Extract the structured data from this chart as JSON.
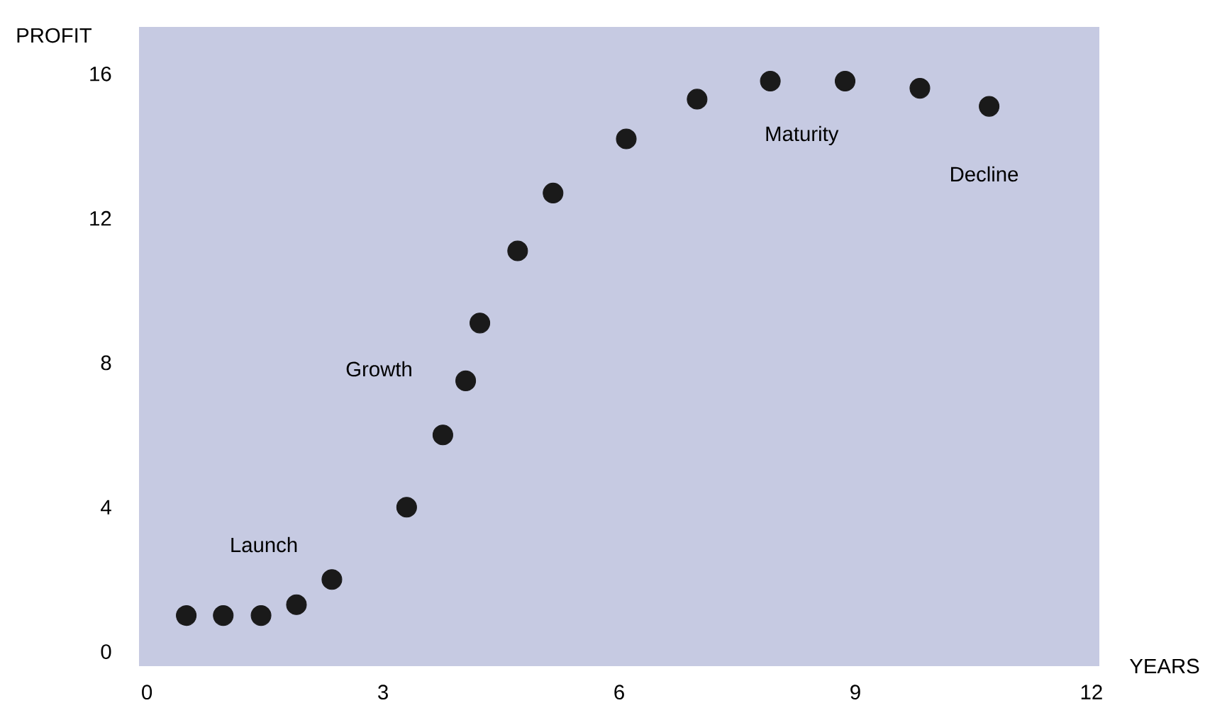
{
  "chart_data": {
    "type": "scatter",
    "xlabel": "YEARS",
    "ylabel": "PROFIT",
    "x": [
      0.5,
      0.97,
      1.45,
      1.9,
      2.35,
      3.3,
      3.76,
      4.05,
      4.23,
      4.71,
      5.16,
      6.09,
      6.99,
      7.92,
      8.87,
      9.82,
      10.7
    ],
    "values": [
      1,
      1,
      1,
      1.3,
      2,
      4,
      6,
      7.5,
      9.1,
      11.1,
      12.7,
      14.2,
      15.3,
      15.8,
      15.8,
      15.6,
      15.1
    ],
    "color": "#1a1a1a",
    "marker": "circle",
    "xlim": [
      -0.1,
      12.1
    ],
    "ylim": [
      -0.4,
      17.3
    ],
    "xticks": [
      0,
      3,
      6,
      9,
      12
    ],
    "yticks": [
      0,
      4,
      8,
      12,
      16
    ],
    "annotations": [
      "Launch",
      "Growth",
      "Maturity",
      "Decline"
    ]
  }
}
